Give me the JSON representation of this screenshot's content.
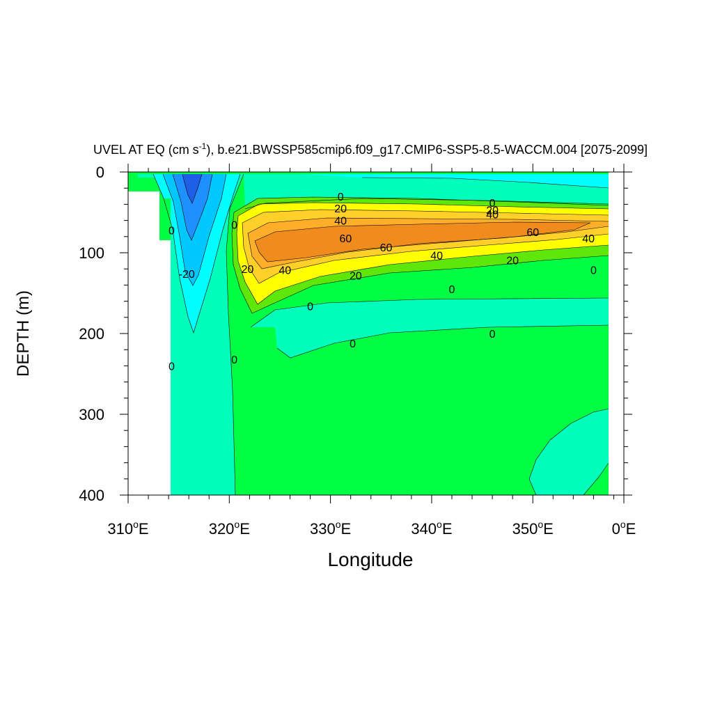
{
  "chart_data": {
    "type": "contour",
    "title_main": "UVEL AT EQ (cm s",
    "title_sup": "-1",
    "title_rest": "), b.e21.BWSSP585cmip6.f09_g17.CMIP6-SSP5-8.5-WACCM.004 [2075-2099]",
    "xlabel": "Longitude",
    "ylabel": "DEPTH (m)",
    "xlim": [
      310,
      359
    ],
    "ylim": [
      0,
      400
    ],
    "y_reversed": true,
    "x_ticks": [
      {
        "value": 310,
        "num": "310",
        "deg": "o",
        "suffix": "E"
      },
      {
        "value": 320,
        "num": "320",
        "deg": "o",
        "suffix": "E"
      },
      {
        "value": 330,
        "num": "330",
        "deg": "o",
        "suffix": "E"
      },
      {
        "value": 340,
        "num": "340",
        "deg": "o",
        "suffix": "E"
      },
      {
        "value": 350,
        "num": "350",
        "deg": "o",
        "suffix": "E"
      },
      {
        "value": 359,
        "num": "0",
        "deg": "o",
        "suffix": "E"
      }
    ],
    "y_ticks": [
      {
        "value": 0,
        "label": "0"
      },
      {
        "value": 100,
        "label": "100"
      },
      {
        "value": 200,
        "label": "200"
      },
      {
        "value": 300,
        "label": "300"
      },
      {
        "value": 400,
        "label": "400"
      }
    ],
    "contour_levels": [
      -50,
      -40,
      -30,
      -20,
      -10,
      0,
      10,
      20,
      30,
      40,
      50,
      60,
      70
    ],
    "colors": {
      "below_-30": "#1f5ee6",
      "-30_-20": "#1e90ff",
      "-20_-10": "#00c8ff",
      "-10_0": "#00ffff",
      "0_10": "#00ffbb",
      "10_20": "#00ff44",
      "20_30": "#5fe60a",
      "30_40": "#ffff00",
      "40_50": "#ffd02a",
      "50_60": "#ffae2a",
      "60_70": "#f08c1e",
      "land": "#ffffff"
    },
    "contour_labels": [
      {
        "text": "0",
        "lon": 331.0,
        "depth": 30
      },
      {
        "text": "20",
        "lon": 331.0,
        "depth": 45
      },
      {
        "text": "40",
        "lon": 331.0,
        "depth": 60
      },
      {
        "text": "60",
        "lon": 331.5,
        "depth": 82
      },
      {
        "text": "60",
        "lon": 335.5,
        "depth": 93
      },
      {
        "text": "40",
        "lon": 340.5,
        "depth": 103
      },
      {
        "text": "20",
        "lon": 348.0,
        "depth": 109
      },
      {
        "text": "0",
        "lon": 356.0,
        "depth": 121
      },
      {
        "text": "0",
        "lon": 346.0,
        "depth": 38
      },
      {
        "text": "20",
        "lon": 346.0,
        "depth": 47
      },
      {
        "text": "40",
        "lon": 346.0,
        "depth": 52
      },
      {
        "text": "60",
        "lon": 350.0,
        "depth": 74
      },
      {
        "text": "40",
        "lon": 355.5,
        "depth": 82
      },
      {
        "text": "40",
        "lon": 325.5,
        "depth": 121
      },
      {
        "text": "20",
        "lon": 332.5,
        "depth": 128
      },
      {
        "text": "20",
        "lon": 321.8,
        "depth": 120
      },
      {
        "text": "0",
        "lon": 320.5,
        "depth": 65
      },
      {
        "text": "0",
        "lon": 314.3,
        "depth": 72
      },
      {
        "text": "-20",
        "lon": 315.8,
        "depth": 126
      },
      {
        "text": "0",
        "lon": 342.0,
        "depth": 145
      },
      {
        "text": "0",
        "lon": 328.0,
        "depth": 166
      },
      {
        "text": "0",
        "lon": 346.0,
        "depth": 200
      },
      {
        "text": "0",
        "lon": 332.2,
        "depth": 212
      },
      {
        "text": "0",
        "lon": 320.5,
        "depth": 232
      },
      {
        "text": "0",
        "lon": 314.3,
        "depth": 240
      }
    ]
  }
}
